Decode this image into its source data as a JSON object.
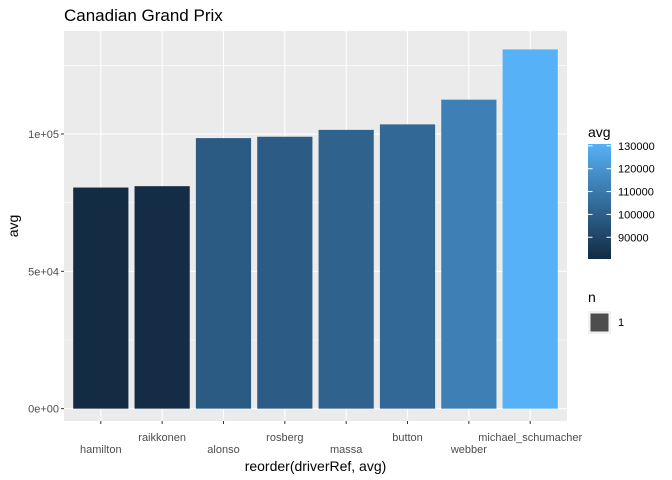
{
  "chart_data": {
    "type": "bar",
    "title": "Canadian Grand Prix",
    "xlabel": "reorder(driverRef, avg)",
    "ylabel": "avg",
    "categories": [
      "hamilton",
      "raikkonen",
      "alonso",
      "rosberg",
      "massa",
      "button",
      "webber",
      "michael_schumacher"
    ],
    "values": [
      80500,
      81000,
      98500,
      99000,
      101500,
      103500,
      112500,
      130800
    ],
    "ylim": [
      -4500,
      137500
    ],
    "y_ticks": [
      0,
      50000,
      100000
    ],
    "y_tick_labels": [
      "0e+00",
      "5e+04",
      "1e+05"
    ],
    "grid": true,
    "legend": {
      "placement": "right",
      "color": {
        "title": "avg",
        "ticks": [
          90000,
          100000,
          110000,
          120000,
          130000
        ],
        "tick_labels": [
          "90000",
          "100000",
          "110000",
          "120000",
          "130000"
        ],
        "low_color": "#132B43",
        "high_color": "#56B1F7"
      },
      "size": {
        "title": "n",
        "entries": [
          "1"
        ],
        "key_color": "#4d4d4d"
      }
    },
    "colors": {
      "panel_background": "#EBEBEB",
      "grid": "#FFFFFF"
    }
  }
}
